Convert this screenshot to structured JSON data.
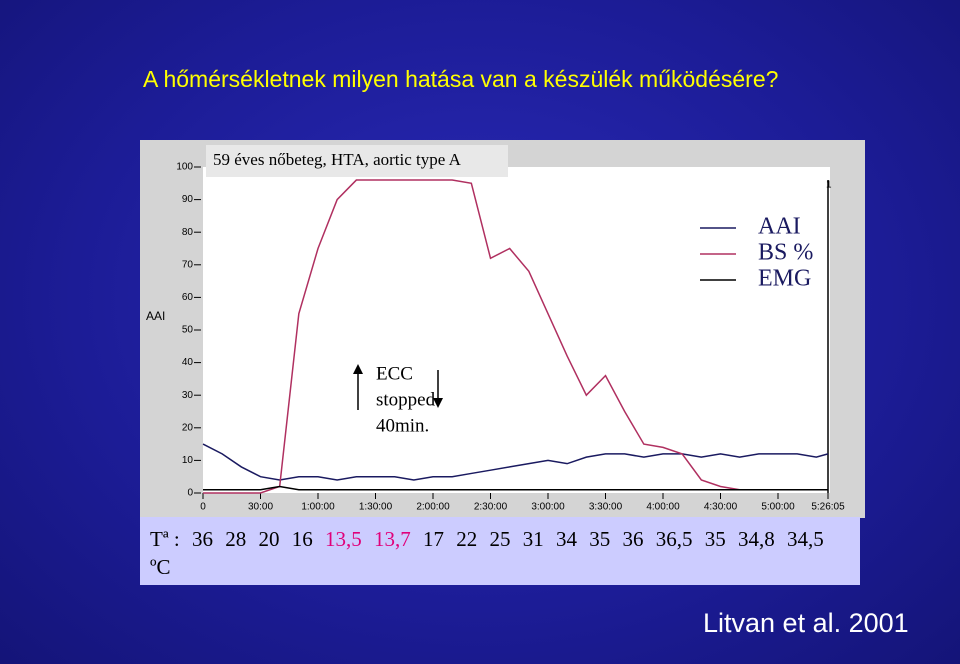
{
  "slide_title": "A hőmérsékletnek milyen hatása van a készülék működésére?",
  "chart_data": {
    "type": "line",
    "title": "59 éves nőbeteg, HTA, aortic type A",
    "y_label": "AAI",
    "marker_label": "1",
    "annotations": [
      "ECC",
      "stopped",
      "40min."
    ],
    "x": [
      0,
      600,
      1200,
      1800,
      2400,
      3000,
      3600,
      4200,
      4800,
      5400,
      6000,
      6600,
      7200,
      7800,
      8400,
      9000,
      9600,
      10200,
      10800,
      11400,
      12000,
      12600,
      13200,
      13800,
      14400,
      15000,
      15600,
      16200,
      16800,
      17400,
      18000,
      18600,
      19200,
      19565
    ],
    "xlim": [
      0,
      19565
    ],
    "xticks": [
      {
        "value": 0,
        "label": "0"
      },
      {
        "value": 1800,
        "label": "30:00"
      },
      {
        "value": 3600,
        "label": "1:00:00"
      },
      {
        "value": 5400,
        "label": "1:30:00"
      },
      {
        "value": 7200,
        "label": "2:00:00"
      },
      {
        "value": 9000,
        "label": "2:30:00"
      },
      {
        "value": 10800,
        "label": "3:00:00"
      },
      {
        "value": 12600,
        "label": "3:30:00"
      },
      {
        "value": 14400,
        "label": "4:00:00"
      },
      {
        "value": 16200,
        "label": "4:30:00"
      },
      {
        "value": 18000,
        "label": "5:00:00"
      },
      {
        "value": 19565,
        "label": "5:26:05"
      }
    ],
    "ylim": [
      0,
      100
    ],
    "yticks": [
      0,
      10,
      20,
      30,
      40,
      50,
      60,
      70,
      80,
      90,
      100
    ],
    "series": [
      {
        "name": "AAI",
        "color": "#1a1a60",
        "values": [
          15,
          12,
          8,
          5,
          4,
          5,
          5,
          4,
          5,
          5,
          5,
          4,
          5,
          5,
          6,
          7,
          8,
          9,
          10,
          9,
          11,
          12,
          12,
          11,
          12,
          12,
          11,
          12,
          11,
          12,
          12,
          12,
          11,
          12
        ]
      },
      {
        "name": "BS %",
        "color": "#b03060",
        "values": [
          0,
          0,
          0,
          0,
          2,
          55,
          75,
          90,
          96,
          96,
          96,
          96,
          96,
          96,
          95,
          72,
          75,
          68,
          55,
          42,
          30,
          36,
          25,
          15,
          14,
          12,
          4,
          2,
          1,
          1,
          1,
          1,
          1,
          1
        ]
      },
      {
        "name": "EMG",
        "color": "#000000",
        "values": [
          1,
          1,
          1,
          1,
          2,
          1,
          1,
          1,
          1,
          1,
          1,
          1,
          1,
          1,
          1,
          1,
          1,
          1,
          1,
          1,
          1,
          1,
          1,
          1,
          1,
          1,
          1,
          1,
          1,
          1,
          1,
          1,
          1,
          1
        ]
      }
    ]
  },
  "temperature": {
    "label": "Tª :",
    "items": [
      {
        "text": "36",
        "color": "#000000"
      },
      {
        "text": "28",
        "color": "#000000"
      },
      {
        "text": "20",
        "color": "#000000"
      },
      {
        "text": "16",
        "color": "#000000"
      },
      {
        "text": "13,5",
        "color": "#e0007a"
      },
      {
        "text": "13,7",
        "color": "#e0007a"
      },
      {
        "text": "17",
        "color": "#000000"
      },
      {
        "text": "22",
        "color": "#000000"
      },
      {
        "text": "25",
        "color": "#000000"
      },
      {
        "text": "31",
        "color": "#000000"
      },
      {
        "text": "34",
        "color": "#000000"
      },
      {
        "text": "35",
        "color": "#000000"
      },
      {
        "text": "36",
        "color": "#000000"
      },
      {
        "text": "36,5",
        "color": "#000000"
      },
      {
        "text": "35",
        "color": "#000000"
      },
      {
        "text": "34,8",
        "color": "#000000"
      },
      {
        "text": "34,5",
        "color": "#000000"
      }
    ],
    "unit": "ºC"
  },
  "citation": "Litvan et al. 2001"
}
